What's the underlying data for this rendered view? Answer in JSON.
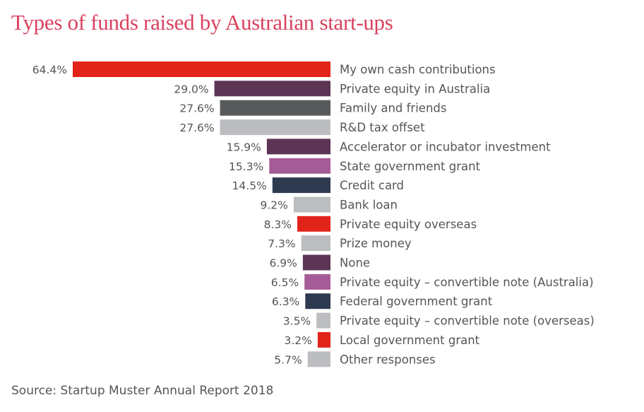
{
  "title": "Types of funds raised by Australian start-ups",
  "source": "Source: Startup Muster Annual Report 2018",
  "colors": {
    "title": "#d9415e",
    "text": "#555558"
  },
  "chart_data": {
    "type": "bar",
    "orientation": "horizontal",
    "title": "Types of funds raised by Australian start-ups",
    "xlabel": "",
    "ylabel": "",
    "unit": "%",
    "xlim": [
      0,
      64.4
    ],
    "grid": false,
    "legend": "none",
    "categories": [
      "My own cash contributions",
      "Private equity in Australia",
      "Family and friends",
      "R&D tax offset",
      "Accelerator or incubator investment",
      "State government grant",
      "Credit card",
      "Bank loan",
      "Private equity overseas",
      "Prize money",
      "None",
      "Private equity – convertible note (Australia)",
      "Federal government grant",
      "Private equity – convertible note (overseas)",
      "Local government grant",
      "Other responses"
    ],
    "values": [
      64.4,
      29.0,
      27.6,
      27.6,
      15.9,
      15.3,
      14.5,
      9.2,
      8.3,
      7.3,
      6.9,
      6.5,
      6.3,
      3.5,
      3.2,
      5.7
    ],
    "value_labels": [
      "64.4%",
      "29.0%",
      "27.6%",
      "27.6%",
      "15.9%",
      "15.3%",
      "14.5%",
      "9.2%",
      "8.3%",
      "7.3%",
      "6.9%",
      "6.5%",
      "6.3%",
      "3.5%",
      "3.2%",
      "5.7%"
    ],
    "bar_colors": [
      "#e2231a",
      "#5c3454",
      "#58595b",
      "#bcbdc0",
      "#5c3454",
      "#a55b97",
      "#2e3a4f",
      "#bcbdc0",
      "#e2231a",
      "#bcbdc0",
      "#5c3454",
      "#a55b97",
      "#2e3a4f",
      "#bcbdc0",
      "#e2231a",
      "#bcbdc0"
    ]
  }
}
